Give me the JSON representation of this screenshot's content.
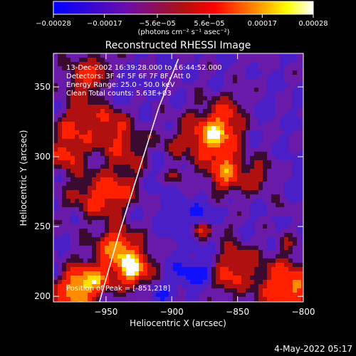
{
  "chart_data": {
    "type": "heatmap",
    "title": "Reconstructed RHESSI Image",
    "xlabel": "Heliocentric X (arcsec)",
    "ylabel": "Heliocentric Y (arcsec)",
    "xlim": [
      -990,
      -800
    ],
    "ylim": [
      196,
      374
    ],
    "x_ticks": [
      -950,
      -900,
      -850,
      -800
    ],
    "x_tick_labels": [
      "−950",
      "−900",
      "−850",
      "−800"
    ],
    "y_ticks": [
      200,
      250,
      300,
      350
    ],
    "y_tick_labels": [
      "200",
      "250",
      "300",
      "350"
    ],
    "colorbar": {
      "range": [
        -0.00028,
        0.00028
      ],
      "ticks": [
        -0.00028,
        -0.00017,
        -5.6e-05,
        5.6e-05,
        0.00017,
        0.00028
      ],
      "tick_labels": [
        "−0.00028",
        "−0.00017",
        "−5.6e−05",
        "5.6e−05",
        "0.00017",
        "0.00028"
      ],
      "unit_label": "(photons cm⁻² s⁻¹ asec⁻²)",
      "colors": [
        "#0000ff",
        "#6a0dad",
        "#ff0000",
        "#ff8c00",
        "#ffff00",
        "#ffffff"
      ]
    },
    "annotations": [
      "13-Dec-2002 16:39:28.000 to 16:44:52.000",
      "Detectors: 3F 4F 5F 6F 7F 8F, Att 0",
      "Energy Range: 25.0 - 50.0 keV",
      "Clean     Total counts: 5.63E+03"
    ],
    "peak_label": "Position of Peak = [-851,218]",
    "limb_curve": {
      "x": [
        -955,
        -940,
        -925,
        -910,
        -895
      ],
      "y": [
        196,
        245,
        290,
        335,
        370
      ]
    },
    "grid": false
  },
  "footer": {
    "date_stamp": "4-May-2022 05:17"
  }
}
